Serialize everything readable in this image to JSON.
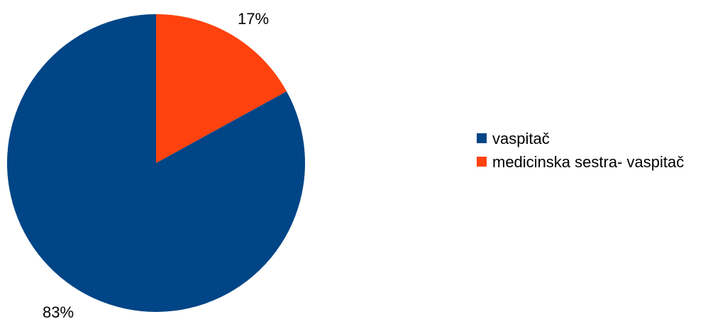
{
  "chart_data": {
    "type": "pie",
    "slices": [
      {
        "label": "vaspitač",
        "value": 83,
        "display": "83%",
        "color": "#004586"
      },
      {
        "label": "medicinska sestra- vaspitač",
        "value": 17,
        "display": "17%",
        "color": "#ff420e"
      }
    ],
    "legend_position": "right"
  }
}
